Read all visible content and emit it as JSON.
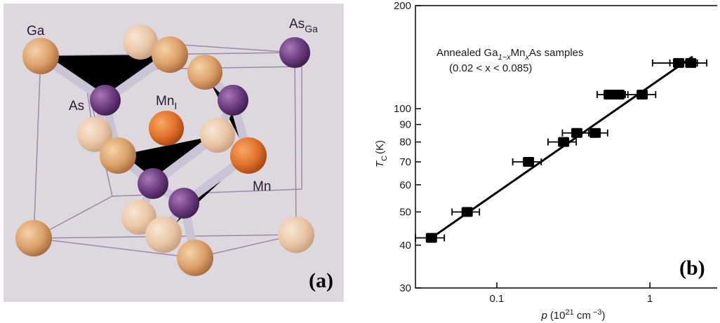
{
  "panel_a": {
    "ga": "Ga",
    "as_ga": {
      "main": "As",
      "sub": "Ga"
    },
    "as": "As",
    "mn_i": {
      "main": "Mn",
      "sub": "I"
    },
    "mn": "Mn",
    "panel_label": "(a)"
  },
  "chart_data": {
    "type": "scatter",
    "xscale": "log",
    "yscale": "log",
    "color": "#000000",
    "annotation": {
      "line1": [
        "Annealed Ga",
        "1−x",
        "Mn",
        "x",
        "As samples"
      ],
      "line2": "(0.02 < x < 0.085)"
    },
    "xlabel": {
      "main": "p",
      "pre": "(10",
      "sup": "21",
      "mid": " cm",
      "sup2": " −3",
      "post": ")"
    },
    "ylabel": {
      "main": "T",
      "sub": "C",
      "unit": "(K)"
    },
    "panel_label": "(b)",
    "x": [
      0.0374,
      0.064,
      0.161,
      0.273,
      0.333,
      0.439,
      0.542,
      0.628,
      0.89,
      1.54,
      1.85
    ],
    "values": [
      42,
      50,
      70,
      80,
      85,
      85,
      110,
      110,
      110,
      136,
      136
    ],
    "xerr": [
      0.008,
      0.013,
      0.034,
      0.057,
      0.065,
      0.09,
      0.09,
      0.09,
      0.2,
      0.5,
      0.5
    ],
    "fit": {
      "x": [
        0.0374,
        1.9
      ],
      "y": [
        42,
        142
      ]
    },
    "xlim": [
      0.0294,
      2.75
    ],
    "ylim": [
      30,
      200
    ],
    "xticks": [
      0.1,
      1
    ],
    "yticks": [
      30,
      40,
      50,
      60,
      70,
      80,
      90,
      100,
      200
    ]
  }
}
